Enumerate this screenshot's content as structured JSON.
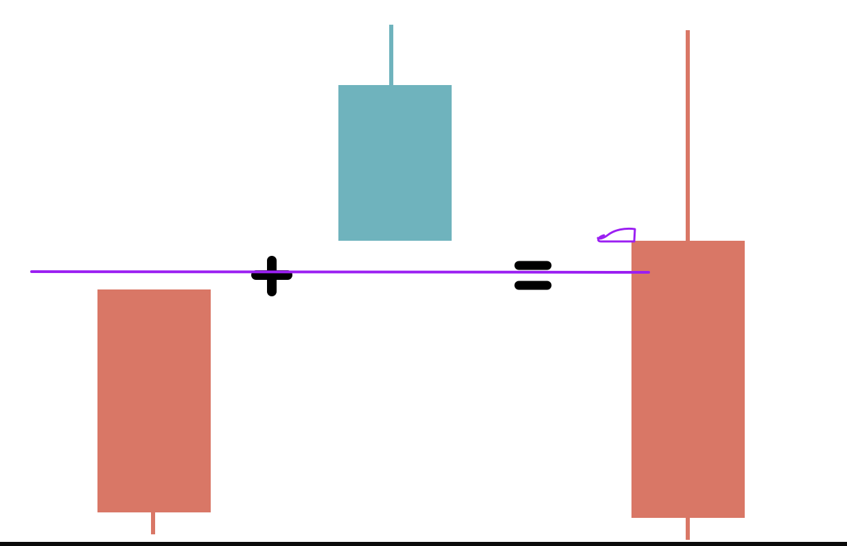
{
  "diagram": {
    "description_labels": [],
    "operators": [
      "plus",
      "equals"
    ],
    "candles": [
      {
        "id": "candle-1",
        "direction": "bearish",
        "color": "#d97766"
      },
      {
        "id": "candle-2",
        "direction": "bullish",
        "color": "#6fb3bd"
      },
      {
        "id": "candle-result",
        "direction": "bearish",
        "color": "#d97766"
      }
    ],
    "annotation": {
      "line_color": "#9b1ff2",
      "shape": "horizontal-line-with-scribble"
    },
    "colors": {
      "bearish": "#d97766",
      "bullish": "#6fb3bd",
      "operator": "#000000",
      "annotation": "#9b1ff2",
      "background": "#ffffff"
    }
  }
}
